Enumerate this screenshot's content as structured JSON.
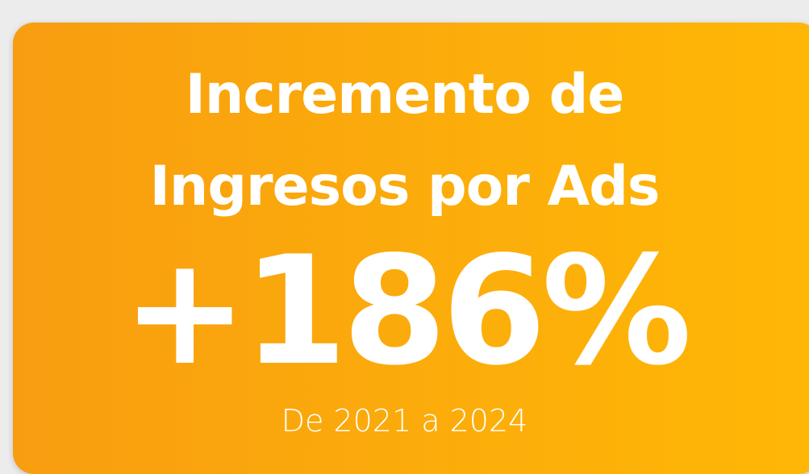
{
  "card": {
    "title_line1": "Incremento de",
    "title_line2": "Ingresos por Ads",
    "stat": "+186%",
    "caption": "De 2021 a 2024"
  }
}
